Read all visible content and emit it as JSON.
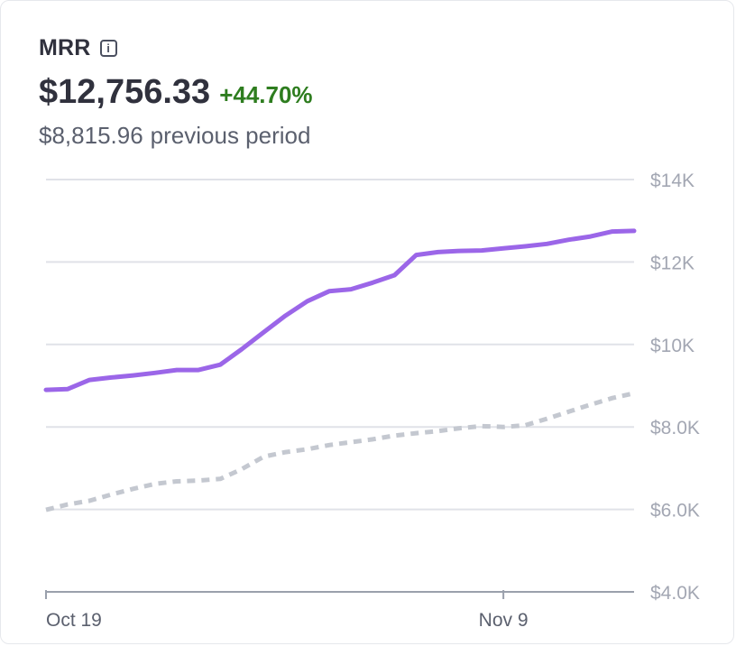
{
  "header": {
    "title": "MRR",
    "info_icon": "info-icon",
    "value": "$12,756.33",
    "change": "+44.70%",
    "previous_value": "$8,815.96",
    "previous_label": "previous period"
  },
  "colors": {
    "current_series": "#9b66e8",
    "previous_series": "#c4c8d0",
    "gridline": "#e0e2e8",
    "change_positive": "#2e7d1f"
  },
  "chart_data": {
    "type": "line",
    "title": "",
    "xlabel": "",
    "ylabel": "",
    "ylim": [
      4000,
      14000
    ],
    "yticks": [
      {
        "value": 14000,
        "label": "$14K"
      },
      {
        "value": 12000,
        "label": "$12K"
      },
      {
        "value": 10000,
        "label": "$10K"
      },
      {
        "value": 8000,
        "label": "$8.0K"
      },
      {
        "value": 6000,
        "label": "$6.0K"
      },
      {
        "value": 4000,
        "label": "$4.0K"
      }
    ],
    "xticks": [
      {
        "index": 0,
        "label": "Oct 19"
      },
      {
        "index": 21,
        "label": "Nov 9"
      }
    ],
    "num_points": 28,
    "grid": true,
    "series": [
      {
        "style": "solid",
        "values": [
          8900,
          8920,
          9140,
          9200,
          9250,
          9310,
          9380,
          9380,
          9510,
          9890,
          10300,
          10700,
          11050,
          11290,
          11340,
          11500,
          11680,
          12170,
          12240,
          12270,
          12280,
          12330,
          12380,
          12440,
          12540,
          12620,
          12740,
          12756
        ]
      },
      {
        "style": "dashed",
        "values": [
          5990,
          6120,
          6210,
          6360,
          6500,
          6620,
          6680,
          6700,
          6740,
          6980,
          7280,
          7390,
          7460,
          7560,
          7630,
          7700,
          7790,
          7850,
          7900,
          7970,
          8020,
          8000,
          8040,
          8200,
          8370,
          8540,
          8700,
          8816
        ]
      }
    ]
  }
}
